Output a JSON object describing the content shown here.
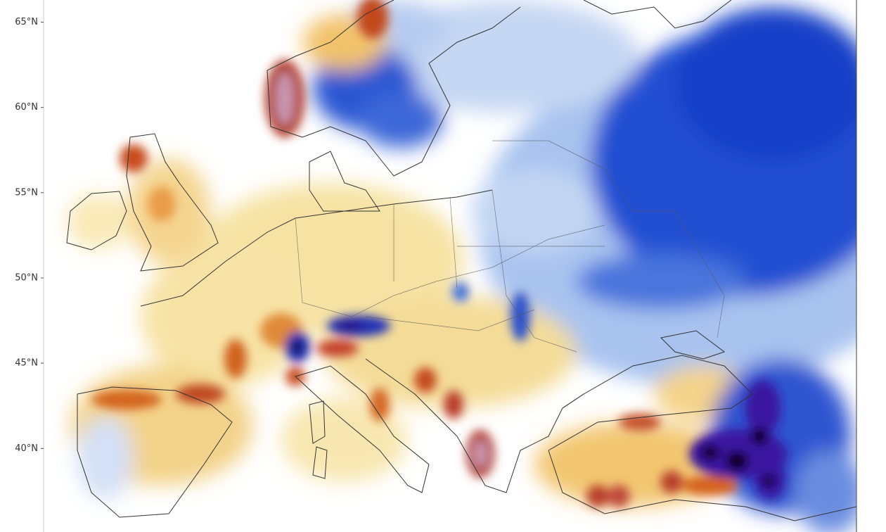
{
  "map": {
    "ylim": [
      35.1,
      66.3
    ],
    "yticks": [
      {
        "value": 65,
        "label": "65°N"
      },
      {
        "value": 60,
        "label": "60°N"
      },
      {
        "value": 55,
        "label": "55°N"
      },
      {
        "value": 50,
        "label": "50°N"
      },
      {
        "value": 45,
        "label": "45°N"
      },
      {
        "value": 40,
        "label": "40°N"
      }
    ]
  }
}
